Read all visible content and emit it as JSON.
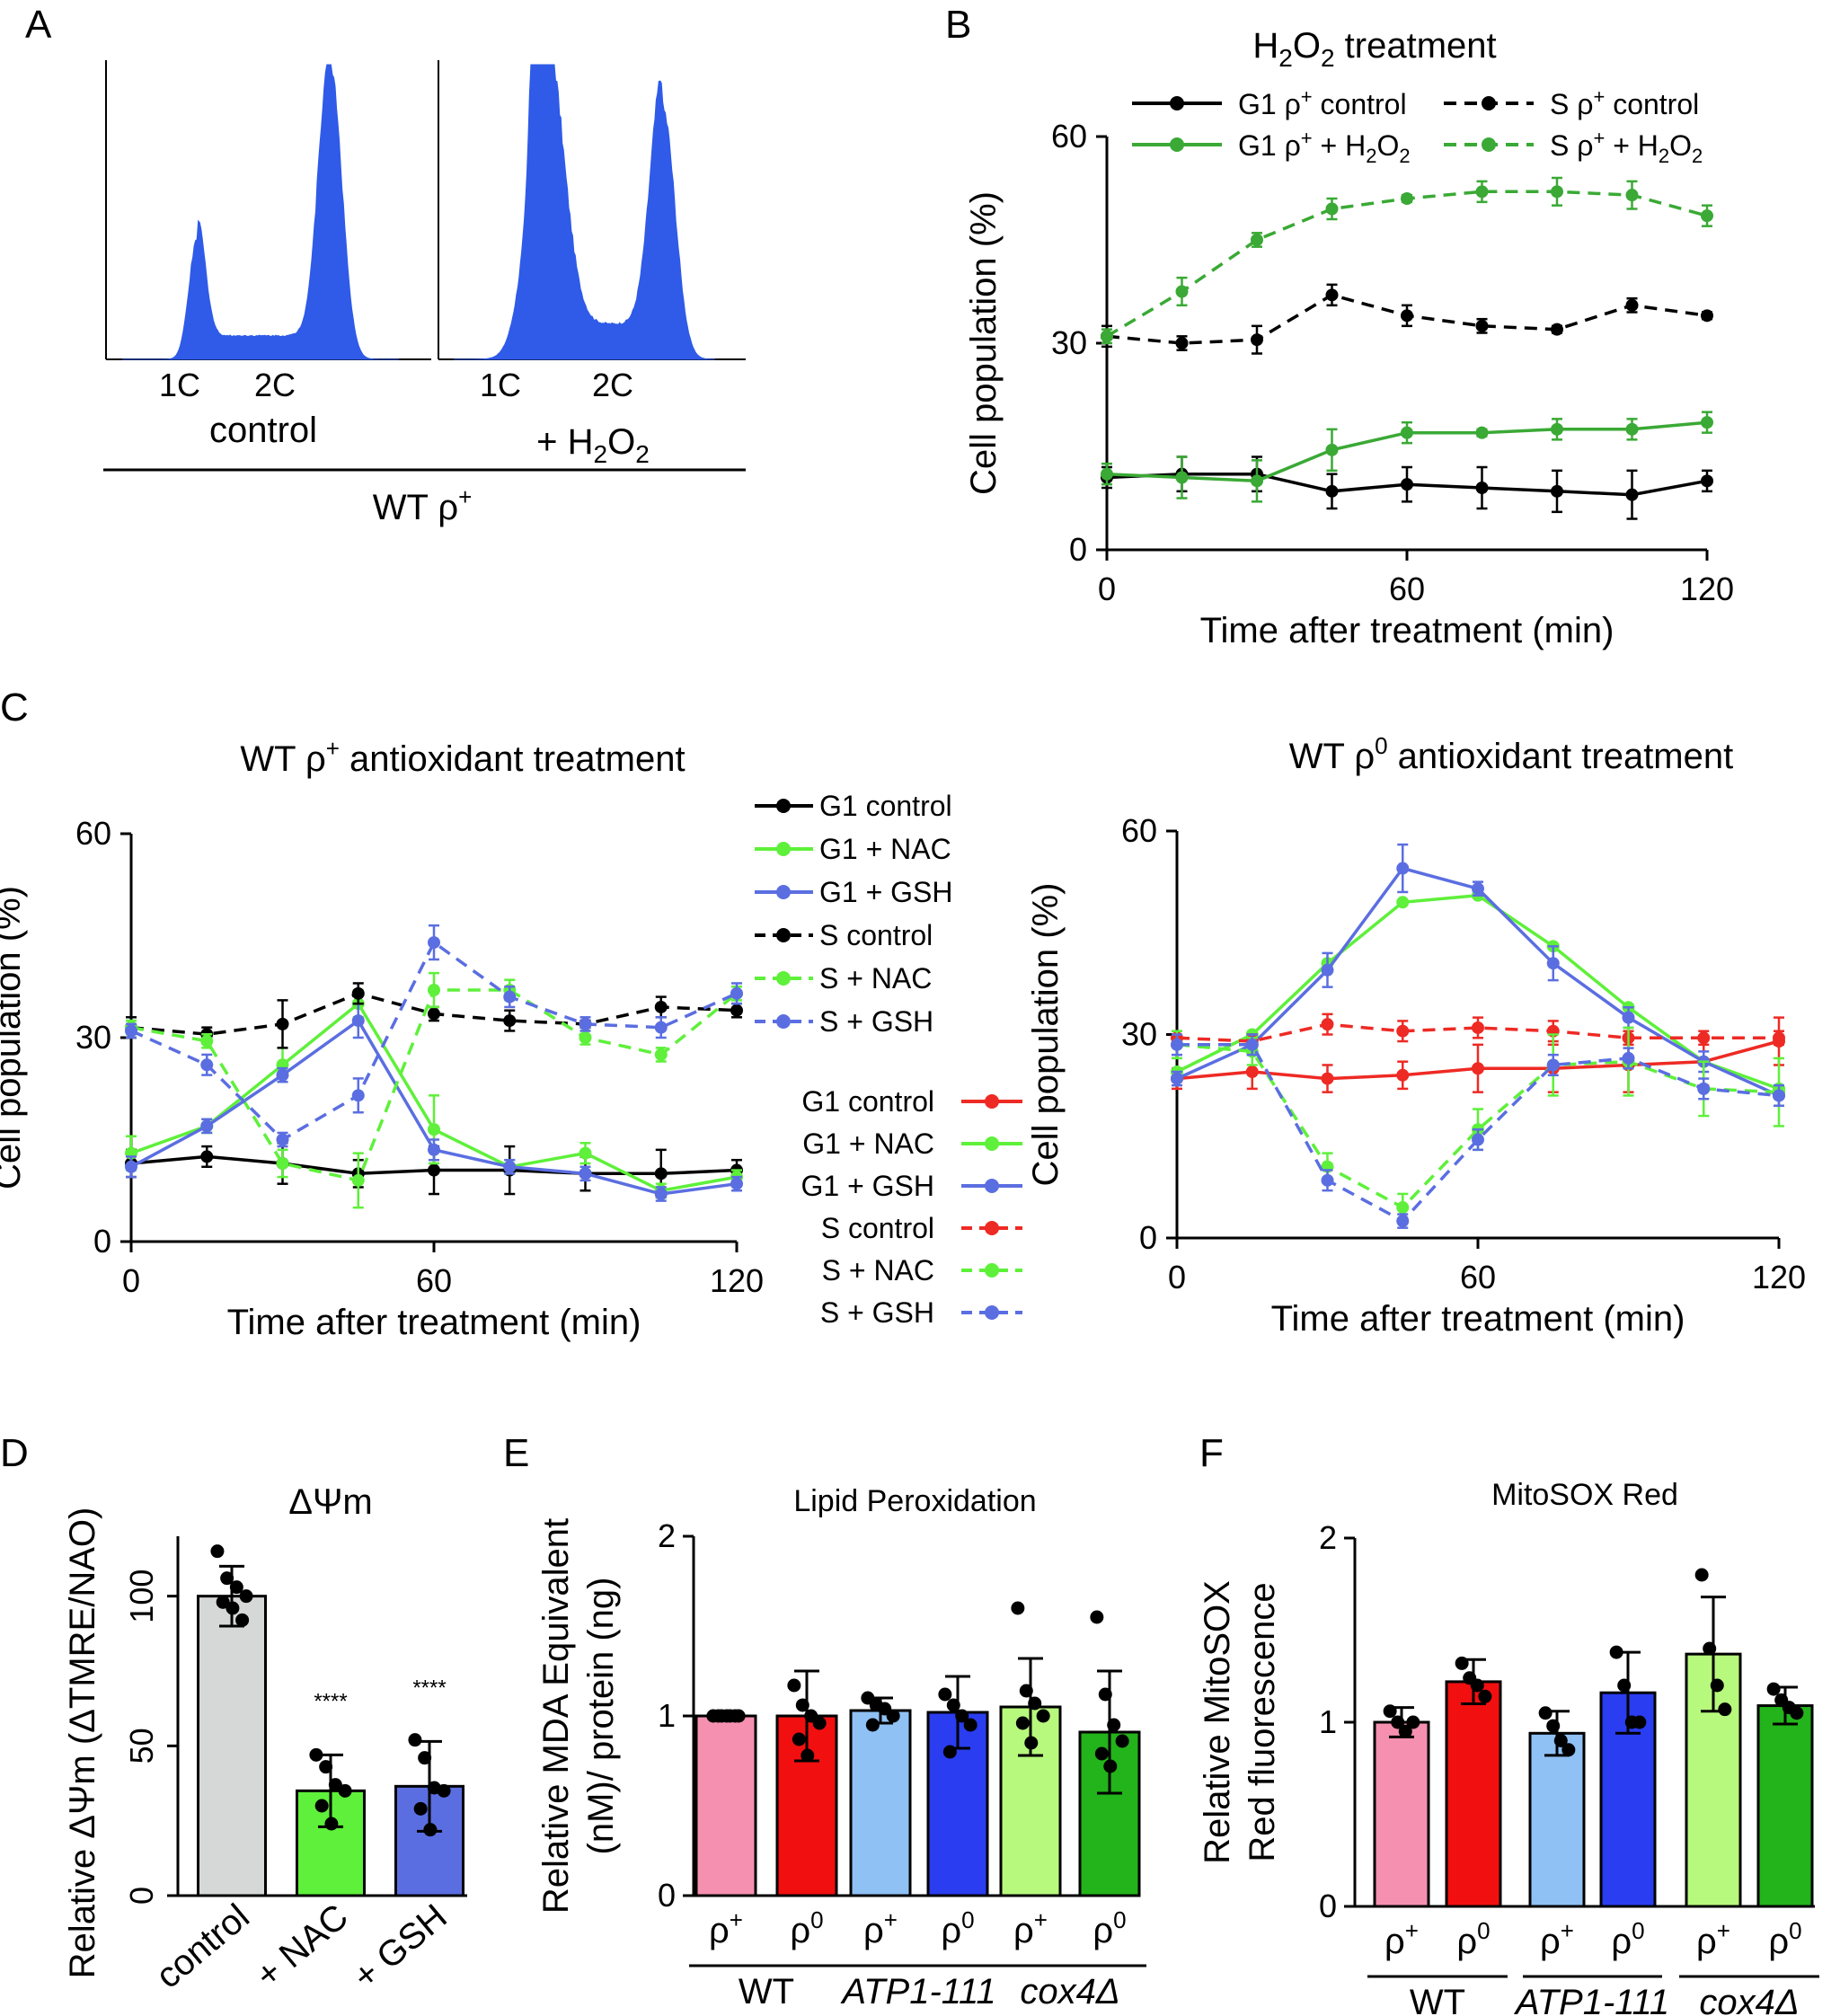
{
  "panel_labels": {
    "A": "A",
    "B": "B",
    "C": "C",
    "D": "D",
    "E": "E",
    "F": "F"
  },
  "chart_data": [
    {
      "id": "A",
      "type": "histogram",
      "title": "",
      "histograms": [
        {
          "name": "control",
          "peak_labels": [
            "1C",
            "2C"
          ],
          "peak_heights": [
            0.4,
            1.0
          ]
        },
        {
          "name": "+ H2O2",
          "peak_labels": [
            "1C",
            "2C"
          ],
          "peak_heights": [
            1.0,
            0.85
          ]
        }
      ],
      "group_label": "WT ρ+",
      "label_control": "control",
      "label_h2o2_prefix": "+ H",
      "label_h2o2_sub1": "2",
      "label_h2o2_mid": "O",
      "label_h2o2_sub2": "2",
      "label_group_base": "WT ρ",
      "label_group_sup": "+"
    },
    {
      "id": "B",
      "type": "line",
      "title": "H2O2 treatment",
      "title_parts": {
        "h": "H",
        "s1": "2",
        "o": "O",
        "s2": "2",
        "rest": " treatment"
      },
      "xlabel": "Time after treatment (min)",
      "ylabel": "Cell population (%)",
      "xlim": [
        0,
        120
      ],
      "ylim": [
        0,
        60
      ],
      "xticks": [
        0,
        60,
        120
      ],
      "yticks": [
        0,
        30,
        60
      ],
      "x": [
        0,
        15,
        30,
        45,
        60,
        75,
        90,
        105,
        120
      ],
      "series": [
        {
          "name": "G1 ρ+ control",
          "color": "#000000",
          "dashed": false,
          "values": [
            10.5,
            11,
            11,
            8.5,
            9.5,
            9,
            8.5,
            8,
            10
          ],
          "errors": [
            1.5,
            2.5,
            2.5,
            2.5,
            2.5,
            3,
            3,
            3.5,
            1.5
          ]
        },
        {
          "name": "G1 ρ+ + H2O2",
          "color": "#3aa935",
          "dashed": false,
          "values": [
            11,
            10.5,
            10,
            14.5,
            17,
            17,
            17.5,
            17.5,
            18.5
          ],
          "errors": [
            1.5,
            3,
            3,
            3,
            1.5,
            0.5,
            1.5,
            1.5,
            1.5
          ]
        },
        {
          "name": "S ρ+ control",
          "color": "#000000",
          "dashed": true,
          "values": [
            31,
            30,
            30.5,
            37,
            34,
            32.5,
            32,
            35.5,
            34
          ],
          "errors": [
            1.5,
            1,
            2,
            1.5,
            1.5,
            1,
            0.5,
            1,
            0.5
          ]
        },
        {
          "name": "S ρ+ + H2O2",
          "color": "#3aa935",
          "dashed": true,
          "values": [
            31,
            37.5,
            45,
            49.5,
            51,
            52,
            52,
            51.5,
            48.5
          ],
          "errors": [
            1,
            2,
            1,
            1.5,
            0.5,
            1.5,
            2,
            2,
            1.5
          ]
        }
      ],
      "legend": [
        {
          "base": "G1 ρ",
          "sup": "+",
          "rest": " control"
        },
        {
          "base": "G1 ρ",
          "sup": "+",
          "rest": " + H",
          "sub1": "2",
          "o": "O",
          "sub2": "2"
        },
        {
          "base": "S ρ",
          "sup": "+",
          "rest": " control"
        },
        {
          "base": "S ρ",
          "sup": "+",
          "rest": " + H",
          "sub1": "2",
          "o": "O",
          "sub2": "2"
        }
      ]
    },
    {
      "id": "C1",
      "type": "line",
      "title": "WT ρ+ antioxidant treatment",
      "title_parts": {
        "base": "WT ρ",
        "sup": "+",
        "rest": " antioxidant treatment"
      },
      "xlabel": "Time after treatment (min)",
      "ylabel": "Cell population (%)",
      "xlim": [
        0,
        120
      ],
      "ylim": [
        0,
        60
      ],
      "xticks": [
        0,
        60,
        120
      ],
      "yticks": [
        0,
        30,
        60
      ],
      "x": [
        0,
        15,
        30,
        45,
        60,
        75,
        90,
        105,
        120
      ],
      "series": [
        {
          "name": "G1 control",
          "color": "#000000",
          "dashed": false,
          "values": [
            11.5,
            12.5,
            11.5,
            10,
            10.5,
            10.5,
            10,
            10,
            10.5
          ],
          "errors": [
            2,
            1.5,
            3,
            2,
            3.5,
            3.5,
            2.5,
            3.5,
            1.5
          ]
        },
        {
          "name": "G1 + NAC",
          "color": "#5ef03a",
          "dashed": false,
          "values": [
            13,
            17,
            26,
            35,
            16.5,
            11,
            13,
            7.5,
            9.5
          ],
          "errors": [
            2.5,
            1,
            2.5,
            2,
            5,
            1,
            1.5,
            1,
            1
          ]
        },
        {
          "name": "G1 + GSH",
          "color": "#5b6ee1",
          "dashed": false,
          "values": [
            11,
            17,
            24.5,
            32.5,
            13.5,
            11,
            10,
            7,
            8.5
          ],
          "errors": [
            1.5,
            1,
            1,
            2.5,
            1.5,
            1,
            1,
            1,
            1
          ]
        },
        {
          "name": "S control",
          "color": "#000000",
          "dashed": true,
          "values": [
            31.5,
            30.5,
            32,
            36.5,
            33.5,
            32.5,
            32,
            34.5,
            34
          ],
          "errors": [
            1.5,
            1,
            3.5,
            1.5,
            1,
            1.5,
            0.5,
            1.5,
            1
          ]
        },
        {
          "name": "S + NAC",
          "color": "#5ef03a",
          "dashed": true,
          "values": [
            31.5,
            29.5,
            11.5,
            9,
            37,
            37,
            30,
            27.5,
            36.5
          ],
          "errors": [
            1,
            1,
            2,
            4,
            2.5,
            1.5,
            1,
            1,
            1
          ]
        },
        {
          "name": "S + GSH",
          "color": "#5b6ee1",
          "dashed": true,
          "values": [
            31,
            26,
            15,
            21.5,
            44,
            36,
            32,
            31.5,
            36.5
          ],
          "errors": [
            1,
            1.5,
            1,
            2.5,
            2.5,
            1.5,
            1,
            1.5,
            1.5
          ]
        }
      ],
      "legend": [
        "G1 control",
        "G1 + NAC",
        "G1 + GSH",
        "S control",
        "S + NAC",
        "S + GSH"
      ]
    },
    {
      "id": "C2",
      "type": "line",
      "title": "WT ρ0 antioxidant treatment",
      "title_parts": {
        "base": "WT ρ",
        "sup": "0",
        "rest": " antioxidant treatment"
      },
      "xlabel": "Time after treatment (min)",
      "ylabel": "Cell population (%)",
      "xlim": [
        0,
        120
      ],
      "ylim": [
        0,
        60
      ],
      "xticks": [
        0,
        60,
        120
      ],
      "yticks": [
        0,
        30,
        60
      ],
      "x": [
        0,
        15,
        30,
        45,
        60,
        75,
        90,
        105,
        120
      ],
      "series": [
        {
          "name": "G1 control",
          "color": "#ee2a24",
          "dashed": false,
          "values": [
            23.5,
            24.5,
            23.5,
            24,
            25,
            25,
            25.5,
            26,
            29
          ],
          "errors": [
            1.5,
            2.5,
            2,
            2,
            3.5,
            3.5,
            4,
            3.5,
            3.5
          ]
        },
        {
          "name": "G1 + NAC",
          "color": "#5ef03a",
          "dashed": false,
          "values": [
            24.5,
            30,
            40.5,
            49.5,
            50.5,
            43,
            34,
            26,
            22
          ]
        },
        {
          "name": "G1 + GSH",
          "color": "#5b6ee1",
          "dashed": false,
          "values": [
            23.5,
            28.5,
            39.5,
            54.5,
            51.5,
            40.5,
            32.5,
            26,
            21
          ],
          "errors": [
            1,
            1.5,
            2.5,
            3.5,
            1,
            2.5,
            1.5,
            1.5,
            1.5
          ]
        },
        {
          "name": "S control",
          "color": "#ee2a24",
          "dashed": true,
          "values": [
            29.5,
            29,
            31.5,
            30.5,
            31,
            30.5,
            29.5,
            29.5,
            29.5
          ],
          "errors": [
            1,
            1,
            1.5,
            1.5,
            1.5,
            1.5,
            1,
            1,
            1
          ]
        },
        {
          "name": "S + NAC",
          "color": "#5ef03a",
          "dashed": true,
          "values": [
            28.5,
            27.5,
            10.5,
            4.5,
            16,
            25.5,
            26,
            22,
            21.5
          ],
          "errors": [
            2,
            2,
            2,
            2,
            3,
            4.5,
            5,
            4,
            5
          ]
        },
        {
          "name": "S + GSH",
          "color": "#5b6ee1",
          "dashed": true,
          "values": [
            28.5,
            28.5,
            8.5,
            2.5,
            14.5,
            25.5,
            26.5,
            22,
            21
          ],
          "errors": [
            1.5,
            1.5,
            1.5,
            1,
            1.5,
            1.5,
            1.5,
            1.5,
            1.5
          ]
        }
      ],
      "legend": [
        "G1 control",
        "G1 + NAC",
        "G1 + GSH",
        "S control",
        "S + NAC",
        "S + GSH"
      ]
    },
    {
      "id": "D",
      "type": "bar",
      "title": "ΔΨm",
      "ylabel": "Relative ΔΨm  (ΔTMRE/NAO)",
      "ylim": [
        0,
        120
      ],
      "yticks": [
        0,
        50,
        100
      ],
      "categories": [
        "control",
        "+ NAC",
        "+ GSH"
      ],
      "values": [
        100,
        35,
        36.5
      ],
      "errors": [
        10,
        12,
        15
      ],
      "colors": [
        "#d6d8d8",
        "#5ef03a",
        "#5b6ee1"
      ],
      "points": [
        [
          115,
          106,
          103,
          100,
          98,
          96,
          92
        ],
        [
          47,
          43,
          37,
          35,
          30,
          24
        ],
        [
          52,
          46,
          36,
          35,
          29,
          22
        ]
      ],
      "annotations": [
        "",
        "****",
        "****"
      ]
    },
    {
      "id": "E",
      "type": "bar",
      "title": "Lipid Peroxidation",
      "ylabel": "Relative MDA Equivalent (nM)/ protein (ng)",
      "ylabel_lines": [
        "Relative MDA Equivalent",
        "(nM)/ protein (ng)"
      ],
      "ylim": [
        0,
        2
      ],
      "yticks": [
        0,
        1,
        2
      ],
      "categories": [
        "ρ+",
        "ρ0",
        "ρ+",
        "ρ0",
        "ρ+",
        "ρ0"
      ],
      "category_parts": [
        [
          "ρ",
          "+"
        ],
        [
          "ρ",
          "0"
        ],
        [
          "ρ",
          "+"
        ],
        [
          "ρ",
          "0"
        ],
        [
          "ρ",
          "+"
        ],
        [
          "ρ",
          "0"
        ]
      ],
      "groups": [
        "WT",
        "ATP1-111",
        "cox4Δ"
      ],
      "values": [
        1.0,
        1.0,
        1.03,
        1.02,
        1.05,
        0.91
      ],
      "errors": [
        0,
        0.25,
        0.07,
        0.2,
        0.27,
        0.34
      ],
      "colors": [
        "#f690b1",
        "#f20f10",
        "#8fc1f5",
        "#2a3df0",
        "#b7f97d",
        "#23b31a"
      ],
      "points": [
        [
          1,
          1,
          1,
          1,
          1,
          1,
          1
        ],
        [
          1.17,
          1.06,
          1.0,
          0.96,
          0.87,
          0.78
        ],
        [
          1.1,
          1.06,
          1.04,
          1.0,
          0.95
        ],
        [
          1.12,
          1.06,
          1.0,
          0.95,
          0.8
        ],
        [
          1.6,
          1.14,
          1.07,
          1.0,
          0.96,
          0.85
        ],
        [
          1.55,
          1.12,
          0.95,
          0.86,
          0.79,
          0.72
        ]
      ]
    },
    {
      "id": "F",
      "type": "bar",
      "title": "MitoSOX Red",
      "ylabel": "Relative MitoSOX Red fluorescence",
      "ylabel_lines": [
        "Relative MitoSOX",
        "Red fluorescence"
      ],
      "ylim": [
        0,
        2
      ],
      "yticks": [
        0,
        1,
        2
      ],
      "categories": [
        "ρ+",
        "ρ0",
        "ρ+",
        "ρ0",
        "ρ+",
        "ρ0"
      ],
      "category_parts": [
        [
          "ρ",
          "+"
        ],
        [
          "ρ",
          "0"
        ],
        [
          "ρ",
          "+"
        ],
        [
          "ρ",
          "0"
        ],
        [
          "ρ",
          "+"
        ],
        [
          "ρ",
          "0"
        ]
      ],
      "groups": [
        "WT",
        "ATP1-111",
        "cox4Δ"
      ],
      "values": [
        1.0,
        1.22,
        0.94,
        1.16,
        1.37,
        1.09
      ],
      "errors": [
        0.08,
        0.12,
        0.12,
        0.22,
        0.31,
        0.1
      ],
      "colors": [
        "#f690b1",
        "#f20f10",
        "#8fc1f5",
        "#2a3df0",
        "#b7f97d",
        "#23b31a"
      ],
      "points": [
        [
          1.06,
          1.0,
          0.95,
          1.0
        ],
        [
          1.32,
          1.24,
          1.2,
          1.14
        ],
        [
          1.05,
          0.98,
          0.9,
          0.85
        ],
        [
          1.38,
          1.2,
          1.0,
          1.0
        ],
        [
          1.8,
          1.4,
          1.2,
          1.07
        ],
        [
          1.18,
          1.12,
          1.08,
          1.05
        ]
      ]
    }
  ]
}
